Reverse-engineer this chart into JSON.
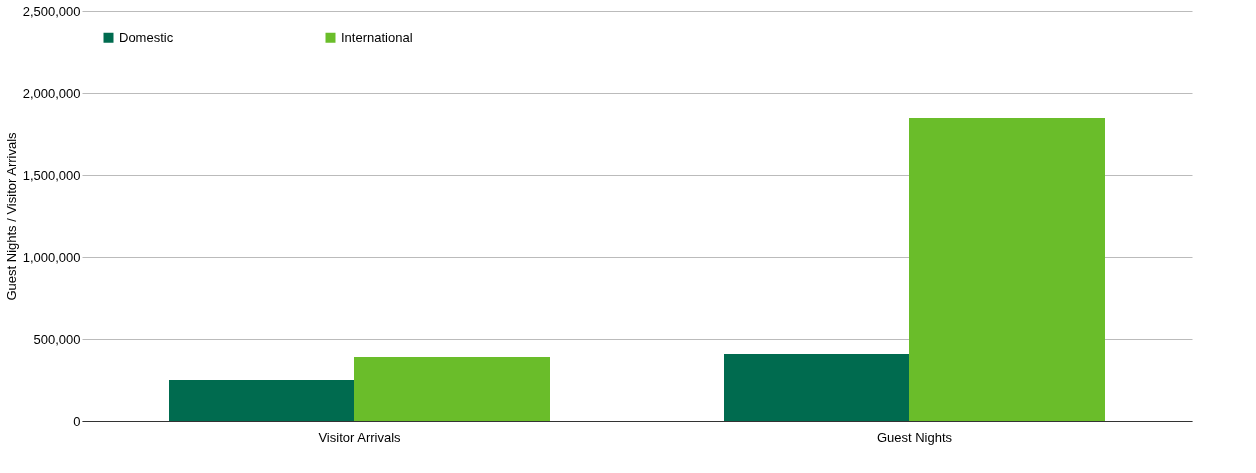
{
  "chart_data": {
    "type": "bar",
    "ylabel": "Guest Nights / Visitor Arrivals",
    "categories": [
      "Visitor Arrivals",
      "Guest Nights"
    ],
    "series": [
      {
        "name": "Domestic",
        "color": "#006b4f",
        "values": [
          250000,
          408000
        ]
      },
      {
        "name": "International",
        "color": "#6abd2a",
        "values": [
          390000,
          1848000
        ]
      }
    ],
    "ylim": [
      0,
      2500000
    ],
    "yticks": [
      {
        "value": 0,
        "label": "0"
      },
      {
        "value": 500000,
        "label": "500,000"
      },
      {
        "value": 1000000,
        "label": "1,000,000"
      },
      {
        "value": 1500000,
        "label": "1,500,000"
      },
      {
        "value": 2000000,
        "label": "2,000,000"
      },
      {
        "value": 2500000,
        "label": "2,500,000"
      }
    ],
    "grid": "y",
    "legend": "top left"
  }
}
